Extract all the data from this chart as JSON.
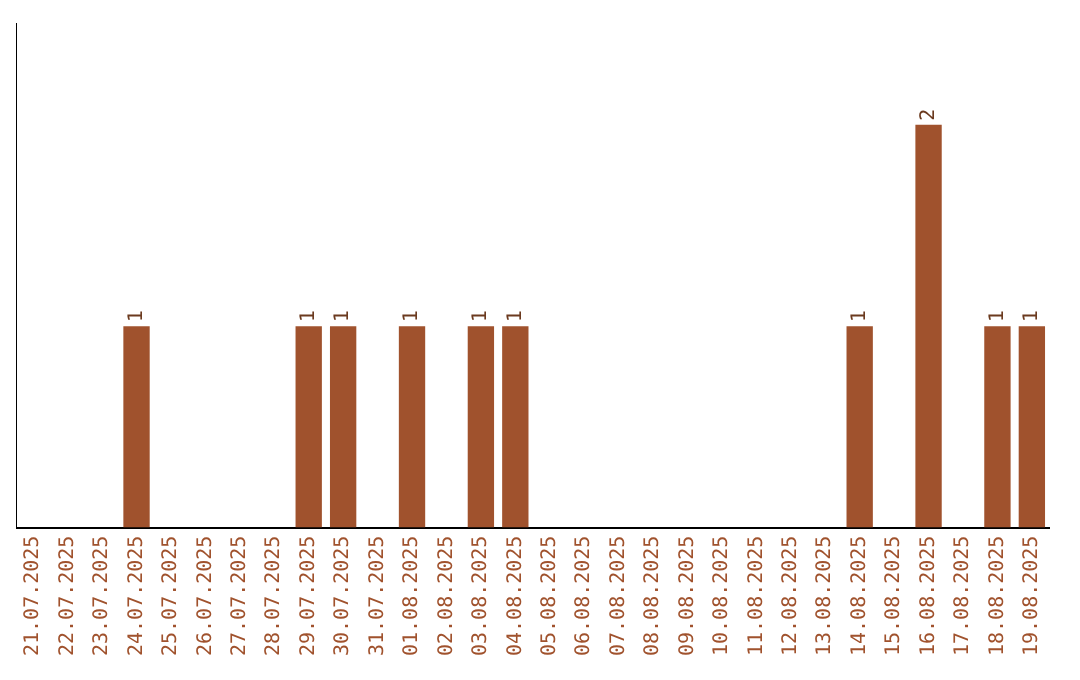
{
  "chart_data": {
    "type": "bar",
    "categories": [
      "21.07.2025",
      "22.07.2025",
      "23.07.2025",
      "24.07.2025",
      "25.07.2025",
      "26.07.2025",
      "27.07.2025",
      "28.07.2025",
      "29.07.2025",
      "30.07.2025",
      "31.07.2025",
      "01.08.2025",
      "02.08.2025",
      "03.08.2025",
      "04.08.2025",
      "05.08.2025",
      "06.08.2025",
      "07.08.2025",
      "08.08.2025",
      "09.08.2025",
      "10.08.2025",
      "11.08.2025",
      "12.08.2025",
      "13.08.2025",
      "14.08.2025",
      "15.08.2025",
      "16.08.2025",
      "17.08.2025",
      "18.08.2025",
      "19.08.2025"
    ],
    "values": [
      0,
      0,
      0,
      1,
      0,
      0,
      0,
      0,
      1,
      1,
      0,
      1,
      0,
      1,
      1,
      0,
      0,
      0,
      0,
      0,
      0,
      0,
      0,
      0,
      1,
      0,
      2,
      0,
      1,
      1
    ],
    "value_labels": [
      null,
      null,
      null,
      "1",
      null,
      null,
      null,
      null,
      "1",
      "1",
      null,
      "1",
      null,
      "1",
      "1",
      null,
      null,
      null,
      null,
      null,
      null,
      null,
      null,
      null,
      "1",
      null,
      "2",
      null,
      "1",
      "1"
    ],
    "color": "#a0522d",
    "grid": false,
    "legend": false
  }
}
